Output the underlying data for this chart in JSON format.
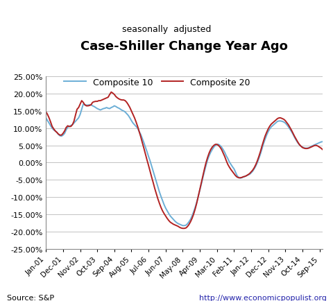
{
  "title": "Case-Shiller Change Year Ago",
  "subtitle": "seasonally  adjusted",
  "source_left": "Source: S&P",
  "source_right": "http://www.economicpopulist.org",
  "ylim": [
    -0.25,
    0.25
  ],
  "yticks": [
    -0.25,
    -0.2,
    -0.15,
    -0.1,
    -0.05,
    0.0,
    0.05,
    0.1,
    0.15,
    0.2,
    0.25
  ],
  "line_color_10": "#6baed6",
  "line_color_20": "#b22222",
  "xtick_labels": [
    "Jan-01",
    "Dec-01",
    "Nov-02",
    "Oct-03",
    "Sep-04",
    "Aug-05",
    "Jul-06",
    "Jun-07",
    "May-08",
    "Apr-09",
    "Mar-10",
    "Feb-11",
    "Jan-12",
    "Dec-12",
    "Nov-13",
    "Oct-14",
    "Sep-15"
  ],
  "composite10": [
    0.13,
    0.122,
    0.115,
    0.107,
    0.1,
    0.095,
    0.092,
    0.088,
    0.082,
    0.078,
    0.077,
    0.08,
    0.085,
    0.095,
    0.103,
    0.105,
    0.108,
    0.11,
    0.115,
    0.12,
    0.125,
    0.13,
    0.14,
    0.155,
    0.17,
    0.168,
    0.167,
    0.167,
    0.168,
    0.168,
    0.165,
    0.163,
    0.16,
    0.157,
    0.155,
    0.153,
    0.155,
    0.157,
    0.158,
    0.16,
    0.158,
    0.157,
    0.16,
    0.162,
    0.165,
    0.163,
    0.16,
    0.158,
    0.155,
    0.152,
    0.15,
    0.147,
    0.142,
    0.137,
    0.13,
    0.122,
    0.115,
    0.11,
    0.105,
    0.1,
    0.09,
    0.082,
    0.07,
    0.058,
    0.045,
    0.032,
    0.018,
    0.005,
    -0.01,
    -0.025,
    -0.04,
    -0.055,
    -0.07,
    -0.085,
    -0.098,
    -0.11,
    -0.122,
    -0.132,
    -0.14,
    -0.148,
    -0.155,
    -0.16,
    -0.165,
    -0.17,
    -0.174,
    -0.177,
    -0.179,
    -0.181,
    -0.183,
    -0.183,
    -0.182,
    -0.178,
    -0.172,
    -0.165,
    -0.155,
    -0.143,
    -0.13,
    -0.115,
    -0.098,
    -0.08,
    -0.062,
    -0.043,
    -0.025,
    -0.008,
    0.008,
    0.02,
    0.03,
    0.038,
    0.045,
    0.05,
    0.053,
    0.053,
    0.05,
    0.045,
    0.038,
    0.03,
    0.02,
    0.012,
    0.002,
    -0.005,
    -0.012,
    -0.018,
    -0.028,
    -0.038,
    -0.043,
    -0.045,
    -0.044,
    -0.042,
    -0.04,
    -0.038,
    -0.036,
    -0.034,
    -0.03,
    -0.025,
    -0.018,
    -0.01,
    0.0,
    0.012,
    0.025,
    0.04,
    0.055,
    0.068,
    0.08,
    0.09,
    0.098,
    0.104,
    0.108,
    0.112,
    0.116,
    0.12,
    0.121,
    0.121,
    0.12,
    0.118,
    0.115,
    0.11,
    0.104,
    0.097,
    0.09,
    0.082,
    0.073,
    0.065,
    0.058,
    0.052,
    0.048,
    0.045,
    0.043,
    0.042,
    0.042,
    0.043,
    0.045,
    0.048,
    0.05,
    0.052,
    0.054,
    0.056,
    0.058,
    0.06,
    0.061
  ],
  "composite20": [
    0.148,
    0.14,
    0.13,
    0.118,
    0.105,
    0.098,
    0.092,
    0.088,
    0.083,
    0.08,
    0.08,
    0.085,
    0.092,
    0.102,
    0.107,
    0.105,
    0.105,
    0.11,
    0.12,
    0.138,
    0.155,
    0.16,
    0.17,
    0.18,
    0.175,
    0.168,
    0.165,
    0.165,
    0.166,
    0.168,
    0.175,
    0.177,
    0.178,
    0.178,
    0.18,
    0.18,
    0.182,
    0.184,
    0.186,
    0.188,
    0.19,
    0.198,
    0.205,
    0.202,
    0.198,
    0.192,
    0.188,
    0.185,
    0.183,
    0.182,
    0.182,
    0.18,
    0.175,
    0.168,
    0.16,
    0.15,
    0.14,
    0.13,
    0.118,
    0.105,
    0.09,
    0.075,
    0.058,
    0.042,
    0.025,
    0.008,
    -0.008,
    -0.025,
    -0.042,
    -0.058,
    -0.075,
    -0.09,
    -0.105,
    -0.118,
    -0.13,
    -0.14,
    -0.148,
    -0.155,
    -0.162,
    -0.168,
    -0.173,
    -0.176,
    -0.179,
    -0.181,
    -0.183,
    -0.185,
    -0.188,
    -0.19,
    -0.191,
    -0.191,
    -0.19,
    -0.186,
    -0.18,
    -0.172,
    -0.162,
    -0.15,
    -0.135,
    -0.118,
    -0.098,
    -0.078,
    -0.058,
    -0.038,
    -0.018,
    0.0,
    0.015,
    0.028,
    0.038,
    0.045,
    0.05,
    0.053,
    0.053,
    0.05,
    0.045,
    0.038,
    0.028,
    0.018,
    0.006,
    -0.005,
    -0.013,
    -0.02,
    -0.026,
    -0.032,
    -0.038,
    -0.042,
    -0.044,
    -0.044,
    -0.043,
    -0.041,
    -0.04,
    -0.038,
    -0.035,
    -0.032,
    -0.027,
    -0.022,
    -0.015,
    -0.006,
    0.005,
    0.018,
    0.032,
    0.048,
    0.063,
    0.077,
    0.088,
    0.098,
    0.106,
    0.112,
    0.116,
    0.12,
    0.124,
    0.128,
    0.13,
    0.13,
    0.128,
    0.126,
    0.122,
    0.116,
    0.11,
    0.102,
    0.094,
    0.085,
    0.076,
    0.068,
    0.06,
    0.053,
    0.048,
    0.044,
    0.042,
    0.041,
    0.041,
    0.042,
    0.044,
    0.046,
    0.048,
    0.05,
    0.05,
    0.048,
    0.045,
    0.042,
    0.038
  ]
}
